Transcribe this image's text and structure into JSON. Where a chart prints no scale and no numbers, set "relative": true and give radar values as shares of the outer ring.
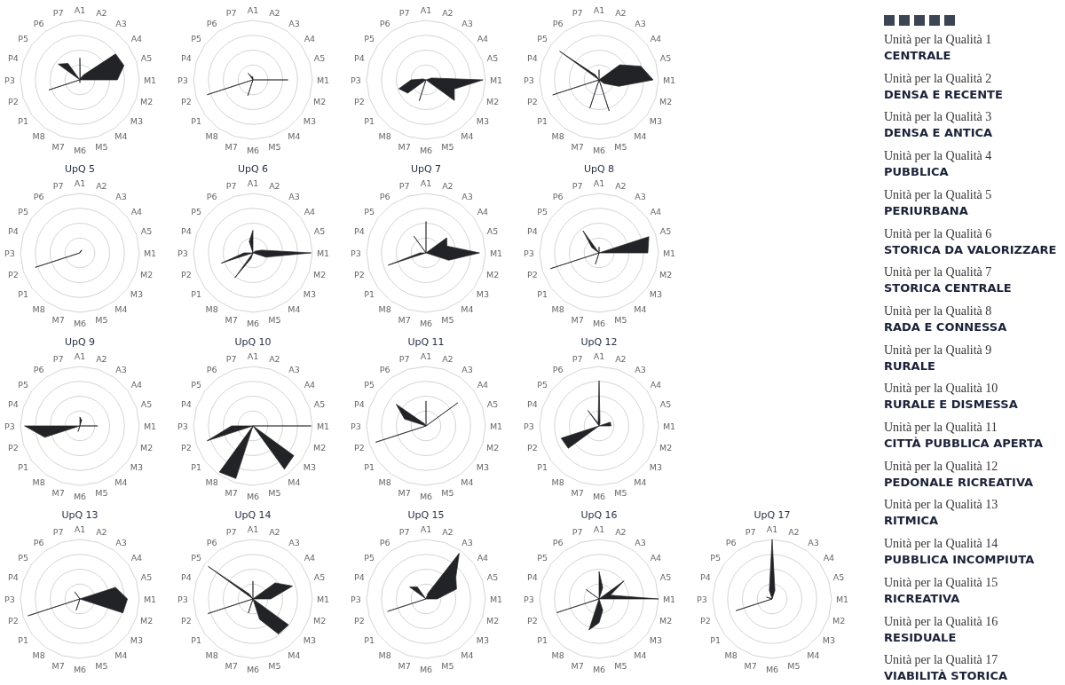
{
  "chart_data": [
    {
      "type": "radar",
      "relative": true,
      "categories": [
        "A1",
        "A2",
        "A3",
        "A4",
        "A5",
        "M1",
        "M2",
        "M3",
        "M4",
        "M5",
        "M6",
        "M7",
        "M8",
        "P1",
        "P2",
        "P3",
        "P4",
        "P5",
        "P6",
        "P7"
      ],
      "series": [
        {
          "color": "#222326",
          "values": [
            0.37,
            0.02,
            0.1,
            0.74,
            0.78,
            0.63,
            0,
            0,
            0,
            0,
            0.05,
            0,
            0,
            0,
            0.55,
            0,
            0,
            0.45,
            0.34,
            0
          ]
        }
      ]
    },
    {
      "type": "radar",
      "relative": true,
      "categories": [
        "A1",
        "A2",
        "A3",
        "A4",
        "A5",
        "M1",
        "M2",
        "M3",
        "M4",
        "M5",
        "M6",
        "M7",
        "M8",
        "P1",
        "P2",
        "P3",
        "P4",
        "P5",
        "P6",
        "P7"
      ],
      "series": [
        {
          "color": "#222326",
          "values": [
            0.05,
            0,
            0,
            0,
            0,
            0.59,
            0,
            0,
            0,
            0,
            0,
            0.28,
            0,
            0,
            0.81,
            0,
            0,
            0,
            0.14,
            0.05
          ]
        }
      ]
    },
    {
      "type": "radar",
      "relative": true,
      "categories": [
        "A1",
        "A2",
        "A3",
        "A4",
        "A5",
        "M1",
        "M2",
        "M3",
        "M4",
        "M5",
        "M6",
        "M7",
        "M8",
        "P1",
        "P2",
        "P3",
        "P4",
        "P5",
        "P6",
        "P7"
      ],
      "series": [
        {
          "color": "#222326",
          "values": [
            0,
            0,
            0,
            0,
            0.1,
            0.96,
            0.5,
            0.59,
            0,
            0,
            0,
            0.37,
            0,
            0.38,
            0.48,
            0.25,
            0.05,
            0,
            0,
            0
          ]
        }
      ]
    },
    {
      "type": "radar",
      "relative": true,
      "categories": [
        "A1",
        "A2",
        "A3",
        "A4",
        "A5",
        "M1",
        "M2",
        "M3",
        "M4",
        "M5",
        "M6",
        "M7",
        "M8",
        "P1",
        "P2",
        "P3",
        "P4",
        "P5",
        "P6",
        "P7"
      ],
      "series": [
        {
          "color": "#222326",
          "values": [
            0.17,
            0,
            0,
            0.43,
            0.74,
            0.91,
            0.35,
            0.1,
            0,
            0.55,
            0,
            0.5,
            0,
            0,
            0.82,
            0,
            0,
            0.82,
            0.1,
            0
          ]
        }
      ]
    },
    {
      "type": "radar",
      "relative": true,
      "title": "UpQ 5",
      "categories": [
        "A1",
        "A2",
        "A3",
        "A4",
        "A5",
        "M1",
        "M2",
        "M3",
        "M4",
        "M5",
        "M6",
        "M7",
        "M8",
        "P1",
        "P2",
        "P3",
        "P4",
        "P5",
        "P6",
        "P7"
      ],
      "series": [
        {
          "color": "#222326",
          "values": [
            0,
            0.03,
            0.06,
            0,
            0,
            0,
            0,
            0,
            0,
            0,
            0,
            0,
            0,
            0,
            0.79,
            0,
            0,
            0,
            0,
            0
          ]
        }
      ]
    },
    {
      "type": "radar",
      "relative": true,
      "title": "UpQ 6",
      "categories": [
        "A1",
        "A2",
        "A3",
        "A4",
        "A5",
        "M1",
        "M2",
        "M3",
        "M4",
        "M5",
        "M6",
        "M7",
        "M8",
        "P1",
        "P2",
        "P3",
        "P4",
        "P5",
        "P6",
        "P7"
      ],
      "series": [
        {
          "color": "#222326",
          "values": [
            0.38,
            0,
            0,
            0.05,
            0.15,
            0.98,
            0.23,
            0,
            0,
            0,
            0,
            0.1,
            0.52,
            0,
            0.56,
            0.15,
            0,
            0,
            0,
            0.2
          ]
        }
      ]
    },
    {
      "type": "radar",
      "relative": true,
      "title": "UpQ 7",
      "categories": [
        "A1",
        "A2",
        "A3",
        "A4",
        "A5",
        "M1",
        "M2",
        "M3",
        "M4",
        "M5",
        "M6",
        "M7",
        "M8",
        "P1",
        "P2",
        "P3",
        "P4",
        "P5",
        "P6",
        "P7"
      ],
      "series": [
        {
          "color": "#222326",
          "values": [
            0.53,
            0,
            0,
            0.43,
            0.37,
            0.9,
            0.4,
            0,
            0,
            0,
            0,
            0,
            0,
            0,
            0.67,
            0.1,
            0,
            0,
            0.35,
            0
          ]
        }
      ]
    },
    {
      "type": "radar",
      "relative": true,
      "title": "UpQ 8",
      "categories": [
        "A1",
        "A2",
        "A3",
        "A4",
        "A5",
        "M1",
        "M2",
        "M3",
        "M4",
        "M5",
        "M6",
        "M7",
        "M8",
        "P1",
        "P2",
        "P3",
        "P4",
        "P5",
        "P6",
        "P7"
      ],
      "series": [
        {
          "color": "#222326",
          "values": [
            0.1,
            0,
            0,
            0,
            0.88,
            0.82,
            0,
            0,
            0,
            0,
            0,
            0.2,
            0,
            0,
            0.86,
            0,
            0,
            0.15,
            0.46,
            0
          ]
        }
      ]
    },
    {
      "type": "radar",
      "relative": true,
      "title": "UpQ 9",
      "categories": [
        "A1",
        "A2",
        "A3",
        "A4",
        "A5",
        "M1",
        "M2",
        "M3",
        "M4",
        "M5",
        "M6",
        "M7",
        "M8",
        "P1",
        "P2",
        "P3",
        "P4",
        "P5",
        "P6",
        "P7"
      ],
      "series": [
        {
          "color": "#222326",
          "values": [
            0.15,
            0.1,
            0,
            0,
            0,
            0.3,
            0,
            0,
            0,
            0,
            0,
            0.1,
            0,
            0,
            0.62,
            0.93,
            0,
            0,
            0,
            0
          ]
        }
      ]
    },
    {
      "type": "radar",
      "relative": true,
      "title": "UpQ 10",
      "categories": [
        "A1",
        "A2",
        "A3",
        "A4",
        "A5",
        "M1",
        "M2",
        "M3",
        "M4",
        "M5",
        "M6",
        "M7",
        "M8",
        "P1",
        "P2",
        "P3",
        "P4",
        "P5",
        "P6",
        "P7"
      ],
      "series": [
        {
          "color": "#222326",
          "values": [
            0,
            0,
            0,
            0,
            0,
            0.98,
            0,
            0.85,
            0.9,
            0,
            0,
            0.93,
            0.96,
            0,
            0.81,
            0.36,
            0,
            0,
            0,
            0
          ]
        }
      ]
    },
    {
      "type": "radar",
      "relative": true,
      "title": "UpQ 11",
      "categories": [
        "A1",
        "A2",
        "A3",
        "A4",
        "A5",
        "M1",
        "M2",
        "M3",
        "M4",
        "M5",
        "M6",
        "M7",
        "M8",
        "P1",
        "P2",
        "P3",
        "P4",
        "P5",
        "P6",
        "P7"
      ],
      "series": [
        {
          "color": "#222326",
          "values": [
            0.42,
            0,
            0,
            0.66,
            0,
            0,
            0,
            0,
            0,
            0,
            0,
            0,
            0,
            0,
            0.89,
            0,
            0.38,
            0.62,
            0.05,
            0
          ]
        }
      ]
    },
    {
      "type": "radar",
      "relative": true,
      "title": "UpQ 12",
      "categories": [
        "A1",
        "A2",
        "A3",
        "A4",
        "A5",
        "M1",
        "M2",
        "M3",
        "M4",
        "M5",
        "M6",
        "M7",
        "M8",
        "P1",
        "P2",
        "P3",
        "P4",
        "P5",
        "P6",
        "P7"
      ],
      "series": [
        {
          "color": "#222326",
          "values": [
            0.76,
            0.05,
            0,
            0,
            0.2,
            0.2,
            0,
            0,
            0,
            0,
            0,
            0,
            0,
            0.64,
            0.67,
            0,
            0,
            0,
            0.32,
            0.05
          ]
        }
      ]
    },
    {
      "type": "radar",
      "relative": true,
      "title": "UpQ 13",
      "categories": [
        "A1",
        "A2",
        "A3",
        "A4",
        "A5",
        "M1",
        "M2",
        "M3",
        "M4",
        "M5",
        "M6",
        "M7",
        "M8",
        "P1",
        "P2",
        "P3",
        "P4",
        "P5",
        "P6",
        "P7"
      ],
      "series": [
        {
          "color": "#222326",
          "values": [
            0,
            0,
            0,
            0,
            0.63,
            0.8,
            0.76,
            0,
            0,
            0,
            0,
            0.2,
            0,
            0,
            0.92,
            0,
            0,
            0,
            0.15,
            0
          ]
        }
      ]
    },
    {
      "type": "radar",
      "relative": true,
      "title": "UpQ 14",
      "categories": [
        "A1",
        "A2",
        "A3",
        "A4",
        "A5",
        "M1",
        "M2",
        "M3",
        "M4",
        "M5",
        "M6",
        "M7",
        "M8",
        "P1",
        "P2",
        "P3",
        "P4",
        "P5",
        "P6",
        "P7"
      ],
      "series": [
        {
          "color": "#222326",
          "values": [
            0.3,
            0,
            0,
            0.46,
            0.7,
            0.3,
            0,
            0.74,
            0.73,
            0.36,
            0,
            0.25,
            0,
            0,
            0.8,
            0,
            0,
            0.93,
            0.1,
            0
          ]
        }
      ]
    },
    {
      "type": "radar",
      "relative": true,
      "title": "UpQ 15",
      "categories": [
        "A1",
        "A2",
        "A3",
        "A4",
        "A5",
        "M1",
        "M2",
        "M3",
        "M4",
        "M5",
        "M6",
        "M7",
        "M8",
        "P1",
        "P2",
        "P3",
        "P4",
        "P5",
        "P6",
        "P7"
      ],
      "series": [
        {
          "color": "#222326",
          "values": [
            0,
            0.1,
            0.95,
            0.62,
            0.54,
            0.19,
            0,
            0,
            0,
            0,
            0,
            0,
            0,
            0,
            0.68,
            0,
            0,
            0.34,
            0.25,
            0
          ]
        }
      ]
    },
    {
      "type": "radar",
      "relative": true,
      "title": "UpQ 16",
      "categories": [
        "A1",
        "A2",
        "A3",
        "A4",
        "A5",
        "M1",
        "M2",
        "M3",
        "M4",
        "M5",
        "M6",
        "M7",
        "M8",
        "P1",
        "P2",
        "P3",
        "P4",
        "P5",
        "P6",
        "P7"
      ],
      "series": [
        {
          "color": "#222326",
          "values": [
            0.46,
            0.2,
            0,
            0.52,
            0.2,
            1,
            0,
            0,
            0,
            0.2,
            0.4,
            0.55,
            0,
            0,
            0.75,
            0,
            0,
            0.27,
            0,
            0
          ]
        }
      ]
    },
    {
      "type": "radar",
      "relative": true,
      "title": "UpQ 17",
      "categories": [
        "A1",
        "A2",
        "A3",
        "A4",
        "A5",
        "M1",
        "M2",
        "M3",
        "M4",
        "M5",
        "M6",
        "M7",
        "M8",
        "P1",
        "P2",
        "P3",
        "P4",
        "P5",
        "P6",
        "P7"
      ],
      "series": [
        {
          "color": "#222326",
          "values": [
            1,
            0.15,
            0,
            0,
            0,
            0,
            0,
            0,
            0,
            0,
            0,
            0,
            0,
            0,
            0.64,
            0,
            0.1,
            0,
            0,
            0.15
          ]
        }
      ]
    },
    {
      "type": "other",
      "annotations": [
        "Unità per la Qualità 1",
        "CENTRALE",
        "Unità per la Qualità 2",
        "DENSA E RECENTE",
        "Unità per la Qualità 3",
        "DENSA E ANTICA",
        "Unità per la Qualità 4",
        "PUBBLICA",
        "Unità per la Qualità 5",
        "PERIURBANA",
        "Unità per la Qualità 6",
        "STORICA DA VALORIZZARE",
        "Unità per la Qualità 7",
        "STORICA CENTRALE",
        "Unità per la Qualità 8",
        "RADA E CONNESSA",
        "Unità per la Qualità 9",
        "RURALE",
        "Unità per la Qualità 10",
        "RURALE E DISMESSA",
        "Unità per la Qualità 11",
        "CITTÀ PUBBLICA APERTA",
        "Unità per la Qualità 12",
        "PEDONALE RICREATIVA",
        "Unità per la Qualità 13",
        "RITMICA",
        "Unità per la Qualità 14",
        "PUBBLICA INCOMPIUTA",
        "Unità per la Qualità 15",
        "RICREATIVA",
        "Unità per la Qualità 16",
        "RESIDUALE",
        "Unità per la Qualità 17",
        "VIABILITÀ STORICA"
      ]
    }
  ]
}
